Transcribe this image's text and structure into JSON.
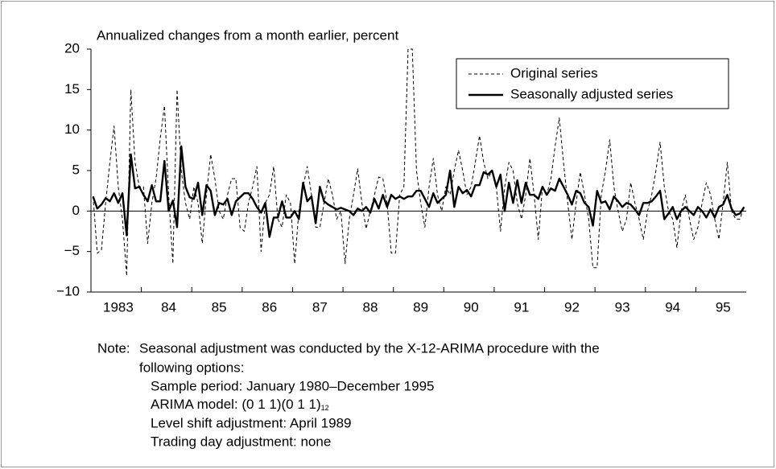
{
  "chart_data": {
    "type": "line",
    "title": "Annualized changes from a month earlier, percent",
    "categories": [
      null,
      null,
      null,
      null,
      null,
      null,
      "1983",
      null,
      null,
      null,
      null,
      null,
      null,
      null,
      null,
      null,
      null,
      null,
      "84",
      null,
      null,
      null,
      null,
      null,
      null,
      null,
      null,
      null,
      null,
      null,
      "85",
      null,
      null,
      null,
      null,
      null,
      null,
      null,
      null,
      null,
      null,
      null,
      "86",
      null,
      null,
      null,
      null,
      null,
      null,
      null,
      null,
      null,
      null,
      null,
      "87",
      null,
      null,
      null,
      null,
      null,
      null,
      null,
      null,
      null,
      null,
      null,
      "88",
      null,
      null,
      null,
      null,
      null,
      null,
      null,
      null,
      null,
      null,
      null,
      "89",
      null,
      null,
      null,
      null,
      null,
      null,
      null,
      null,
      null,
      null,
      null,
      "90",
      null,
      null,
      null,
      null,
      null,
      null,
      null,
      null,
      null,
      null,
      null,
      "91",
      null,
      null,
      null,
      null,
      null,
      null,
      null,
      null,
      null,
      null,
      null,
      "92",
      null,
      null,
      null,
      null,
      null,
      null,
      null,
      null,
      null,
      null,
      null,
      "93",
      null,
      null,
      null,
      null,
      null,
      null,
      null,
      null,
      null,
      null,
      null,
      "94",
      null,
      null,
      null,
      null,
      null,
      null,
      null,
      null,
      null,
      null,
      null,
      "95",
      null,
      null,
      null,
      null,
      null
    ],
    "series": [
      {
        "name": "Original series",
        "color": "#000000",
        "dash": true,
        "values": [
          1.8,
          -5.2,
          -4.8,
          1,
          6,
          10.5,
          3,
          -1,
          -8,
          15,
          6,
          3,
          3,
          -4,
          1,
          4,
          9,
          13,
          2,
          -6.5,
          15,
          5,
          1,
          -1,
          3,
          1,
          -4,
          2,
          7,
          4,
          0,
          -1,
          2,
          4,
          4,
          -2,
          -2.5,
          1,
          3,
          5.5,
          -5,
          1,
          2,
          5.5,
          -1,
          -2,
          2,
          1,
          -6.5,
          0,
          3,
          5.5,
          2,
          -2,
          -2,
          1,
          4,
          2,
          -1,
          0,
          -6.5,
          -1,
          2,
          5.2,
          1,
          -2.2,
          0,
          2,
          4.2,
          4,
          1,
          -5.2,
          -5.2,
          2,
          3,
          20,
          20,
          5,
          1,
          -2,
          3,
          6.5,
          2,
          0,
          3,
          2,
          5,
          7.5,
          5,
          2,
          3,
          6,
          9.3,
          6,
          4,
          5,
          3,
          -2.5,
          3,
          6,
          5,
          1,
          -1,
          2,
          6.5,
          2,
          -3.5,
          3,
          2,
          4,
          8,
          11.5,
          6,
          1,
          -3.5,
          1,
          4.8,
          2,
          -1,
          -7,
          -7,
          2,
          5,
          8.8,
          3,
          0,
          -2.5,
          -1,
          3.5,
          1,
          -1,
          -3.5,
          0,
          2,
          5,
          8.5,
          3,
          0,
          -1,
          -4.5,
          0,
          2,
          -1,
          -3.5,
          -2,
          1,
          3.5,
          2,
          -1,
          -3.5,
          1,
          6,
          0,
          -1,
          -1,
          0.5
        ]
      },
      {
        "name": "Seasonally adjusted series",
        "color": "#000000",
        "dash": false,
        "values": [
          1.8,
          0.3,
          0.8,
          1.6,
          1.2,
          2.2,
          1,
          2.2,
          -3,
          7,
          2.8,
          3,
          2,
          1.2,
          3.2,
          1.2,
          1.2,
          6.2,
          0,
          1.3,
          -2,
          8,
          3,
          1.7,
          1.5,
          3.5,
          -0.5,
          3.2,
          2.5,
          -0.5,
          1,
          0.8,
          1.5,
          -0.5,
          1.2,
          1.7,
          2.2,
          2.2,
          1.5,
          0.5,
          -0.2,
          1,
          -3.2,
          -0.8,
          -0.8,
          1.2,
          -0.8,
          -0.8,
          0,
          -1,
          3.5,
          1.2,
          1.8,
          -1.5,
          3,
          1.2,
          0.8,
          0.5,
          0.2,
          0.4,
          0.2,
          0,
          -0.5,
          0.3,
          0,
          0.5,
          -0.2,
          1.5,
          0.3,
          2,
          0.5,
          2,
          1.5,
          1.8,
          1.5,
          1.8,
          1.8,
          2.5,
          2.5,
          1.5,
          0.5,
          2.2,
          1,
          1.5,
          2,
          5,
          0.5,
          3,
          2.2,
          2.6,
          1.8,
          3.2,
          3.2,
          4.8,
          4.5,
          5,
          3,
          4.5,
          0,
          3.5,
          1,
          3.8,
          1,
          3.5,
          2,
          2,
          1.5,
          3,
          2,
          2.8,
          2.5,
          4,
          3,
          2,
          0.8,
          2.5,
          2.2,
          1,
          0.5,
          -1.8,
          2.5,
          1,
          1.2,
          0.2,
          1.8,
          1.2,
          0.5,
          1,
          0.8,
          0.2,
          -0.5,
          1,
          1,
          1.2,
          1.8,
          2.5,
          -1,
          -0.3,
          0.5,
          -1,
          0,
          0.5,
          0,
          -0.5,
          0.5,
          0,
          -0.8,
          0.2,
          -0.8,
          0.5,
          0.8,
          2,
          0.3,
          -0.5,
          -0.3,
          0.5
        ]
      }
    ],
    "ylim": [
      -10,
      20
    ],
    "yticks": [
      {
        "value": -10,
        "label": "−10"
      },
      {
        "value": -5,
        "label": "−5"
      },
      0,
      5,
      10,
      15,
      20
    ],
    "zero_line": true,
    "legend": "top-right",
    "note_label": "Note:",
    "notes": [
      "Seasonal adjustment was conducted by the X-12-ARIMA procedure with the",
      "following options:",
      "Sample period: January 1980–December 1995",
      "ARIMA model: (0 1 1)(0 1 1)",
      "Level shift adjustment: April 1989",
      "Trading day adjustment: none"
    ],
    "arima_subscript": "12"
  }
}
